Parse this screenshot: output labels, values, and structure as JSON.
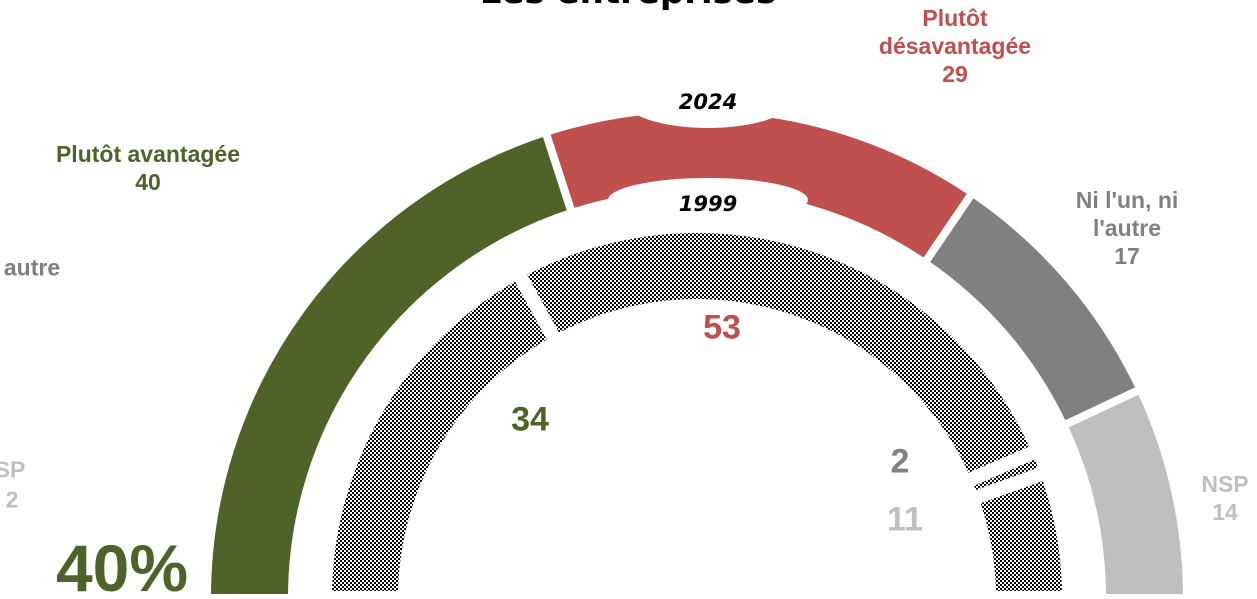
{
  "chart_data": {
    "type": "donut",
    "title": "Les entreprises",
    "categories": [
      "Plutôt avantagée",
      "Plutôt désavantagée",
      "Ni l'un, ni l'autre",
      "NSP"
    ],
    "colors": [
      "#4f6228",
      "#c0504d",
      "#808080",
      "#bfbfbf"
    ],
    "series": [
      {
        "name": "2024",
        "values": [
          40,
          29,
          17,
          14
        ]
      },
      {
        "name": "1999",
        "values": [
          34,
          53,
          2,
          11
        ]
      }
    ],
    "highlight": "40%",
    "fragments": [
      "autre",
      "SP",
      "2"
    ]
  }
}
